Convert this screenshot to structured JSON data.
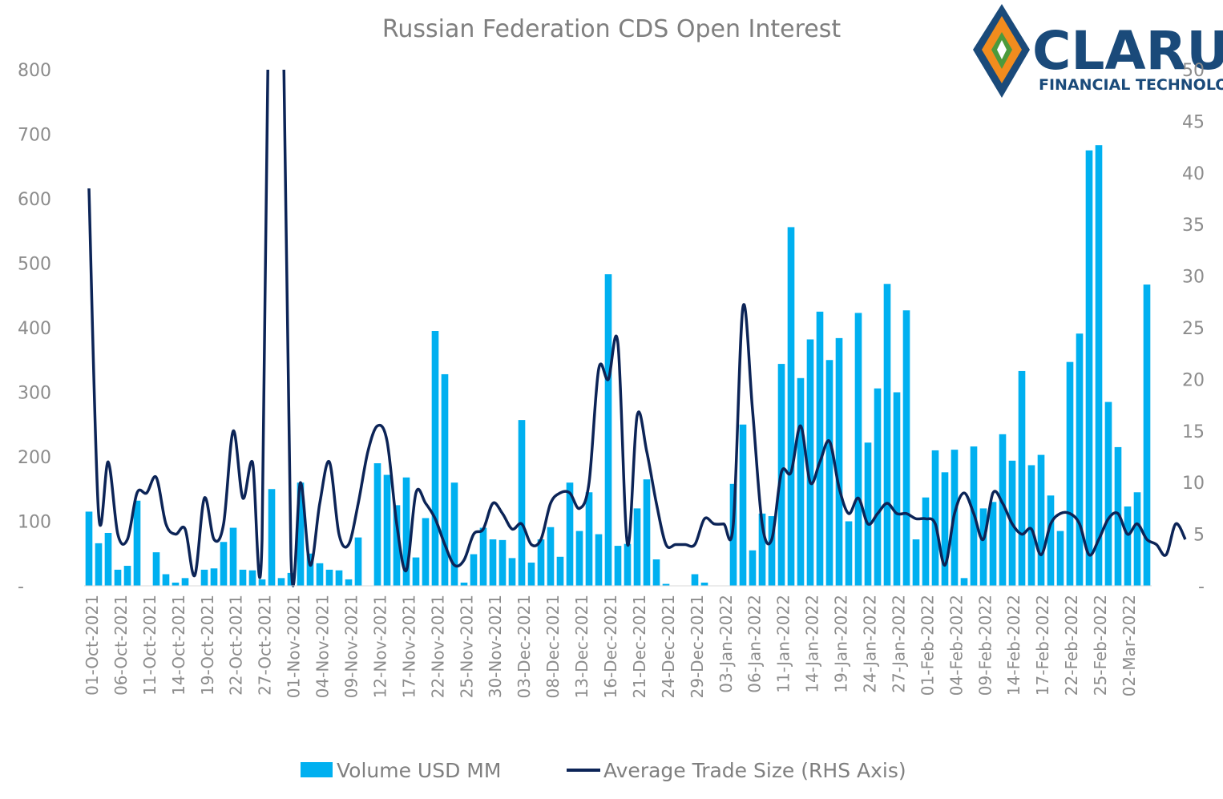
{
  "brand": {
    "name": "CLARUS",
    "tagline": "FINANCIAL TECHNOLOGY",
    "colors": {
      "blue": "#1a4a7a",
      "orange": "#f28c1e",
      "green": "#4c9a3c"
    }
  },
  "chart_data": {
    "type": "bar",
    "title": "Russian Federation CDS Open Interest",
    "colors": {
      "bar": "#00b0f0",
      "line": "#0c2457"
    },
    "y_left": {
      "ylim": [
        0,
        800
      ],
      "ticks": [
        0,
        100,
        200,
        300,
        400,
        500,
        600,
        700,
        800
      ],
      "tick_labels": [
        "-",
        "100",
        "200",
        "300",
        "400",
        "500",
        "600",
        "700",
        "800"
      ]
    },
    "y_right": {
      "ylim": [
        0,
        50
      ],
      "ticks": [
        0,
        5,
        10,
        15,
        20,
        25,
        30,
        35,
        40,
        45,
        50
      ],
      "tick_labels": [
        "-",
        "5",
        "10",
        "15",
        "20",
        "25",
        "30",
        "35",
        "40",
        "45",
        "50"
      ]
    },
    "x_tick_labels": [
      "01-Oct-2021",
      "06-Oct-2021",
      "11-Oct-2021",
      "14-Oct-2021",
      "19-Oct-2021",
      "22-Oct-2021",
      "27-Oct-2021",
      "01-Nov-2021",
      "04-Nov-2021",
      "09-Nov-2021",
      "12-Nov-2021",
      "17-Nov-2021",
      "22-Nov-2021",
      "25-Nov-2021",
      "30-Nov-2021",
      "03-Dec-2021",
      "08-Dec-2021",
      "13-Dec-2021",
      "16-Dec-2021",
      "21-Dec-2021",
      "24-Dec-2021",
      "29-Dec-2021",
      "03-Jan-2022",
      "06-Jan-2022",
      "11-Jan-2022",
      "14-Jan-2022",
      "19-Jan-2022",
      "24-Jan-2022",
      "27-Jan-2022",
      "01-Feb-2022",
      "04-Feb-2022",
      "09-Feb-2022",
      "14-Feb-2022",
      "17-Feb-2022",
      "22-Feb-2022",
      "25-Feb-2022",
      "02-Mar-2022"
    ],
    "legend_position": "bottom",
    "series": [
      {
        "name": "Volume USD MM",
        "type": "bar",
        "axis": "left",
        "values": [
          115,
          66,
          82,
          25,
          31,
          132,
          0,
          52,
          18,
          5,
          12,
          0,
          25,
          27,
          68,
          90,
          25,
          24,
          10,
          150,
          12,
          20,
          160,
          50,
          35,
          25,
          24,
          10,
          75,
          0,
          190,
          172,
          125,
          168,
          44,
          105,
          395,
          328,
          160,
          5,
          49,
          90,
          72,
          71,
          43,
          257,
          36,
          72,
          91,
          45,
          160,
          85,
          145,
          80,
          483,
          62,
          65,
          120,
          165,
          41,
          3,
          0,
          0,
          18,
          5,
          0,
          0,
          158,
          250,
          55,
          112,
          108,
          344,
          556,
          322,
          382,
          425,
          350,
          384,
          100,
          423,
          222,
          306,
          468,
          300,
          427,
          72,
          137,
          210,
          176,
          211,
          12,
          216,
          120,
          130,
          235,
          194,
          333,
          187,
          203,
          140,
          85,
          347,
          391,
          675,
          683,
          285,
          215,
          123,
          145,
          467
        ]
      },
      {
        "name": "Average Trade Size (RHS Axis)",
        "type": "line",
        "axis": "right",
        "values": [
          38.5,
          7,
          12,
          5,
          4.5,
          9,
          9,
          10.5,
          6,
          5,
          5.5,
          1,
          8.5,
          4.5,
          6,
          15,
          8.5,
          12,
          4.5,
          80,
          68,
          3,
          10,
          2,
          8,
          12,
          5,
          4,
          8,
          13,
          15.5,
          14,
          6,
          1.5,
          9,
          8,
          6.5,
          4,
          2,
          2.5,
          5,
          5.5,
          8,
          7,
          5.5,
          6,
          4,
          4.5,
          8,
          9,
          9,
          7.5,
          10,
          21,
          20,
          23.5,
          4,
          16.5,
          13,
          8,
          4,
          4,
          4,
          4,
          6.5,
          6,
          6,
          6,
          27,
          17,
          6,
          4.5,
          11,
          11,
          15.5,
          10,
          12,
          14,
          9.5,
          7,
          8.5,
          6,
          7,
          8,
          7,
          7,
          6.5,
          6.5,
          6,
          2,
          7,
          9,
          7,
          4.5,
          9,
          8,
          6,
          5,
          5.5,
          3,
          6,
          7,
          7,
          6,
          3,
          4.5,
          6.5,
          7,
          5,
          6,
          4.5,
          4,
          3,
          6,
          4.5
        ]
      }
    ]
  }
}
